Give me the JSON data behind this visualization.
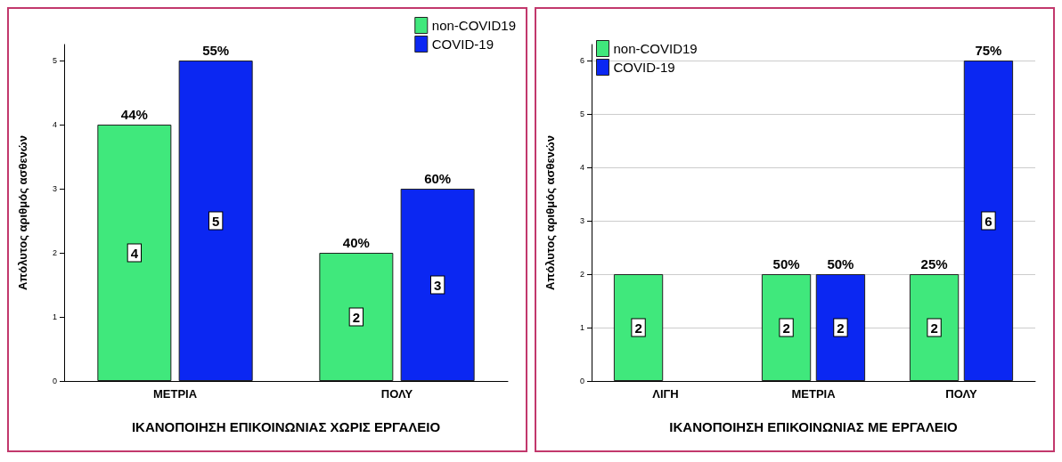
{
  "chart_data": [
    {
      "type": "bar",
      "xlabel": "ΙΚΑΝΟΠΟΙΗΣΗ ΕΠΙΚΟΙΝΩΝΙΑΣ ΧΩΡΙΣ ΕΡΓΑΛΕΙΟ",
      "ylabel": "Απόλυτος αριθμός ασθενών",
      "categories": [
        "ΜΕΤΡΙΑ",
        "ΠΟΛΥ"
      ],
      "series": [
        {
          "name": "non-COVID19",
          "color": "#40e87c",
          "values": [
            4,
            2
          ]
        },
        {
          "name": "COVID-19",
          "color": "#0b27f2",
          "values": [
            5,
            3
          ]
        }
      ],
      "annotations": [
        {
          "text": "44%",
          "x": "ΜΕΤΡΙΑ",
          "y": 4
        },
        {
          "text": "55%",
          "x": "ΜΕΤΡΙΑ",
          "y": 5
        },
        {
          "text": "40%",
          "x": "ΠΟΛΥ",
          "y": 2
        },
        {
          "text": "60%",
          "x": "ΠΟΛΥ",
          "y": 3
        }
      ],
      "ylim": [
        0,
        5.25
      ],
      "yticks": [
        0,
        1,
        2,
        3,
        4,
        5
      ],
      "grid": false,
      "legend": "top right",
      "data_labels": true
    },
    {
      "type": "bar",
      "xlabel": "ΙΚΑΝΟΠΟΙΗΣΗ ΕΠΙΚΟΙΝΩΝΙΑΣ ΜΕ ΕΡΓΑΛΕΙΟ",
      "ylabel": "Απόλυτος αριθμός ασθενών",
      "categories": [
        "ΛΙΓΗ",
        "ΜΕΤΡΙΑ",
        "ΠΟΛΥ"
      ],
      "series": [
        {
          "name": "non-COVID19",
          "color": "#40e87c",
          "values": [
            2,
            2,
            2
          ]
        },
        {
          "name": "COVID-19",
          "color": "#0b27f2",
          "values": [
            null,
            2,
            6
          ]
        }
      ],
      "annotations": [
        {
          "text": "50%",
          "x": "ΜΕΤΡΙΑ",
          "y": 2
        },
        {
          "text": "50%",
          "x": "ΜΕΤΡΙΑ",
          "y": 2
        },
        {
          "text": "25%",
          "x": "ΠΟΛΥ",
          "y": 2
        },
        {
          "text": "75%",
          "x": "ΠΟΛΥ",
          "y": 6
        }
      ],
      "ylim": [
        0,
        6.3
      ],
      "yticks": [
        0,
        1,
        2,
        3,
        4,
        5,
        6
      ],
      "grid": "y",
      "legend": "top left",
      "data_labels": true
    }
  ]
}
